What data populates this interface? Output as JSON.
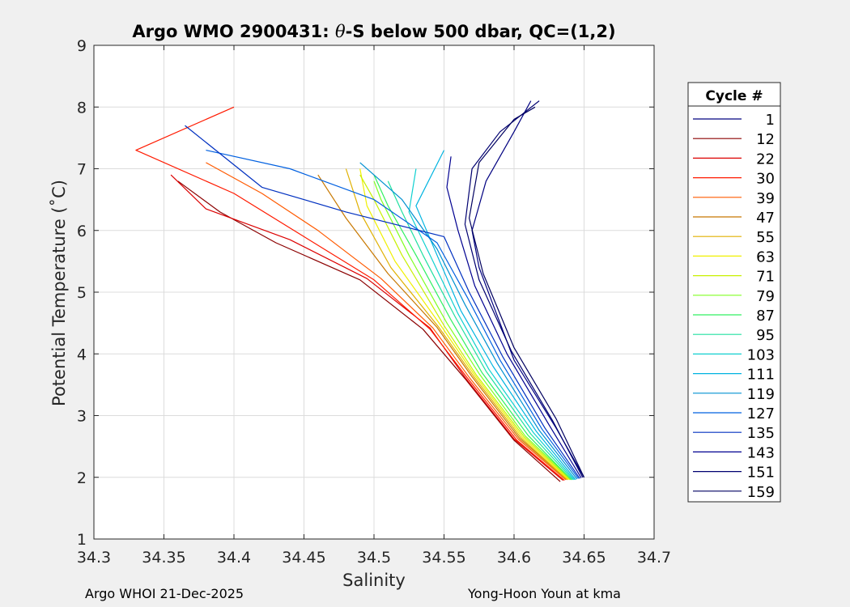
{
  "chart_data": {
    "type": "line",
    "title_prefix": "Argo WMO 2900431: ",
    "title_symbol": "θ",
    "title_suffix": "-S below 500 dbar,  QC=(1,2)",
    "xlabel": "Salinity",
    "ylabel": "Potential Temperature (˚C)",
    "xlim": [
      34.3,
      34.7
    ],
    "ylim": [
      1,
      9
    ],
    "xticks": [
      34.3,
      34.35,
      34.4,
      34.45,
      34.5,
      34.55,
      34.6,
      34.65,
      34.7
    ],
    "xtick_labels": [
      "34.3",
      "34.35",
      "34.4",
      "34.45",
      "34.5",
      "34.55",
      "34.6",
      "34.65",
      "34.7"
    ],
    "yticks": [
      1,
      2,
      3,
      4,
      5,
      6,
      7,
      8,
      9
    ],
    "ytick_labels": [
      "1",
      "2",
      "3",
      "4",
      "5",
      "6",
      "7",
      "8",
      "9"
    ],
    "grid": true,
    "legend": {
      "title": "Cycle #",
      "placement": "outside-right",
      "entries": [
        {
          "label": "1",
          "color": "#000080"
        },
        {
          "label": "12",
          "color": "#8b0000"
        },
        {
          "label": "22",
          "color": "#dc0000"
        },
        {
          "label": "30",
          "color": "#ff1a00"
        },
        {
          "label": "39",
          "color": "#ff5a00"
        },
        {
          "label": "47",
          "color": "#c87800"
        },
        {
          "label": "55",
          "color": "#e0b000"
        },
        {
          "label": "63",
          "color": "#f0f000"
        },
        {
          "label": "71",
          "color": "#c8f000"
        },
        {
          "label": "79",
          "color": "#80ff20"
        },
        {
          "label": "87",
          "color": "#30f060"
        },
        {
          "label": "95",
          "color": "#20e0a0"
        },
        {
          "label": "103",
          "color": "#10d0d0"
        },
        {
          "label": "111",
          "color": "#00b4e0"
        },
        {
          "label": "119",
          "color": "#0090d0"
        },
        {
          "label": "127",
          "color": "#0060e0"
        },
        {
          "label": "135",
          "color": "#0030c0"
        },
        {
          "label": "143",
          "color": "#000090"
        },
        {
          "label": "151",
          "color": "#000070"
        },
        {
          "label": "159",
          "color": "#000060"
        }
      ]
    },
    "series": [
      {
        "name": "1",
        "color": "#000080",
        "x": [
          34.65,
          34.63,
          34.6,
          34.585,
          34.575,
          34.57,
          34.58,
          34.6,
          34.612
        ],
        "y": [
          2.0,
          2.8,
          3.9,
          4.8,
          5.4,
          6.0,
          6.8,
          7.6,
          8.1
        ]
      },
      {
        "name": "12",
        "color": "#8b0000",
        "x": [
          34.633,
          34.6,
          34.565,
          34.535,
          34.49,
          34.43,
          34.39,
          34.36
        ],
        "y": [
          1.93,
          2.6,
          3.6,
          4.4,
          5.2,
          5.8,
          6.3,
          6.8
        ]
      },
      {
        "name": "22",
        "color": "#dc0000",
        "x": [
          34.635,
          34.6,
          34.565,
          34.54,
          34.495,
          34.44,
          34.38,
          34.355
        ],
        "y": [
          1.95,
          2.62,
          3.62,
          4.42,
          5.22,
          5.85,
          6.35,
          6.9
        ]
      },
      {
        "name": "30",
        "color": "#ff1a00",
        "x": [
          34.636,
          34.602,
          34.567,
          34.54,
          34.5,
          34.45,
          34.4,
          34.33,
          34.4
        ],
        "y": [
          1.95,
          2.6,
          3.6,
          4.4,
          5.2,
          5.9,
          6.6,
          7.3,
          8.0
        ]
      },
      {
        "name": "39",
        "color": "#ff5a00",
        "x": [
          34.637,
          34.603,
          34.568,
          34.542,
          34.505,
          34.46,
          34.42,
          34.38
        ],
        "y": [
          1.96,
          2.62,
          3.62,
          4.42,
          5.22,
          6.0,
          6.6,
          7.1
        ]
      },
      {
        "name": "47",
        "color": "#c87800",
        "x": [
          34.638,
          34.604,
          34.57,
          34.545,
          34.51,
          34.48,
          34.46
        ],
        "y": [
          1.96,
          2.63,
          3.63,
          4.43,
          5.3,
          6.2,
          6.9
        ]
      },
      {
        "name": "55",
        "color": "#e0b000",
        "x": [
          34.638,
          34.605,
          34.571,
          34.546,
          34.512,
          34.49,
          34.48
        ],
        "y": [
          1.96,
          2.64,
          3.64,
          4.44,
          5.4,
          6.3,
          7.0
        ]
      },
      {
        "name": "63",
        "color": "#f0f000",
        "x": [
          34.639,
          34.606,
          34.572,
          34.548,
          34.515,
          34.495,
          34.49
        ],
        "y": [
          1.96,
          2.65,
          3.65,
          4.45,
          5.5,
          6.4,
          7.0
        ]
      },
      {
        "name": "71",
        "color": "#c8f000",
        "x": [
          34.64,
          34.607,
          34.573,
          34.55,
          34.52,
          34.5,
          34.49
        ],
        "y": [
          1.96,
          2.66,
          3.66,
          4.46,
          5.6,
          6.5,
          6.9
        ]
      },
      {
        "name": "79",
        "color": "#80ff20",
        "x": [
          34.641,
          34.608,
          34.575,
          34.552,
          34.525,
          34.505,
          34.5
        ],
        "y": [
          1.96,
          2.67,
          3.68,
          4.5,
          5.6,
          6.5,
          6.8
        ]
      },
      {
        "name": "87",
        "color": "#30f060",
        "x": [
          34.641,
          34.61,
          34.577,
          34.555,
          34.53,
          34.51,
          34.5
        ],
        "y": [
          1.96,
          2.68,
          3.7,
          4.55,
          5.6,
          6.4,
          6.9
        ]
      },
      {
        "name": "95",
        "color": "#20e0a0",
        "x": [
          34.642,
          34.612,
          34.58,
          34.558,
          34.535,
          34.52,
          34.51
        ],
        "y": [
          1.96,
          2.7,
          3.72,
          4.6,
          5.6,
          6.3,
          6.8
        ]
      },
      {
        "name": "103",
        "color": "#10d0d0",
        "x": [
          34.643,
          34.614,
          34.582,
          34.56,
          34.54,
          34.525,
          34.53
        ],
        "y": [
          1.96,
          2.72,
          3.75,
          4.65,
          5.6,
          6.3,
          7.0
        ]
      },
      {
        "name": "111",
        "color": "#00b4e0",
        "x": [
          34.644,
          34.616,
          34.585,
          34.562,
          34.545,
          34.53,
          34.55
        ],
        "y": [
          1.96,
          2.74,
          3.8,
          4.7,
          5.6,
          6.4,
          7.3
        ]
      },
      {
        "name": "119",
        "color": "#0090d0",
        "x": [
          34.645,
          34.618,
          34.588,
          34.565,
          34.545,
          34.52,
          34.49
        ],
        "y": [
          1.97,
          2.76,
          3.85,
          4.8,
          5.7,
          6.5,
          7.1
        ]
      },
      {
        "name": "127",
        "color": "#0060e0",
        "x": [
          34.646,
          34.62,
          34.59,
          34.567,
          34.545,
          34.5,
          34.44,
          34.38
        ],
        "y": [
          1.98,
          2.78,
          3.9,
          4.9,
          5.8,
          6.5,
          7.0,
          7.3
        ]
      },
      {
        "name": "135",
        "color": "#0030c0",
        "x": [
          34.647,
          34.622,
          34.592,
          34.568,
          34.55,
          34.48,
          34.42,
          34.365
        ],
        "y": [
          1.98,
          2.8,
          3.95,
          5.0,
          5.9,
          6.3,
          6.7,
          7.7
        ]
      },
      {
        "name": "143",
        "color": "#000090",
        "x": [
          34.648,
          34.625,
          34.595,
          34.572,
          34.56,
          34.552,
          34.555
        ],
        "y": [
          1.99,
          2.85,
          4.0,
          5.1,
          6.0,
          6.7,
          7.2
        ]
      },
      {
        "name": "151",
        "color": "#000070",
        "x": [
          34.649,
          34.628,
          34.598,
          34.575,
          34.565,
          34.57,
          34.59,
          34.618
        ],
        "y": [
          2.0,
          2.9,
          4.05,
          5.2,
          6.1,
          7.0,
          7.6,
          8.1
        ]
      },
      {
        "name": "159",
        "color": "#000060",
        "x": [
          34.65,
          34.63,
          34.6,
          34.578,
          34.568,
          34.575,
          34.6,
          34.615
        ],
        "y": [
          2.0,
          2.95,
          4.1,
          5.3,
          6.2,
          7.1,
          7.8,
          8.0
        ]
      }
    ]
  },
  "footer": {
    "left": "Argo WHOI 21-Dec-2025",
    "right": "Yong-Hoon Youn at kma"
  }
}
